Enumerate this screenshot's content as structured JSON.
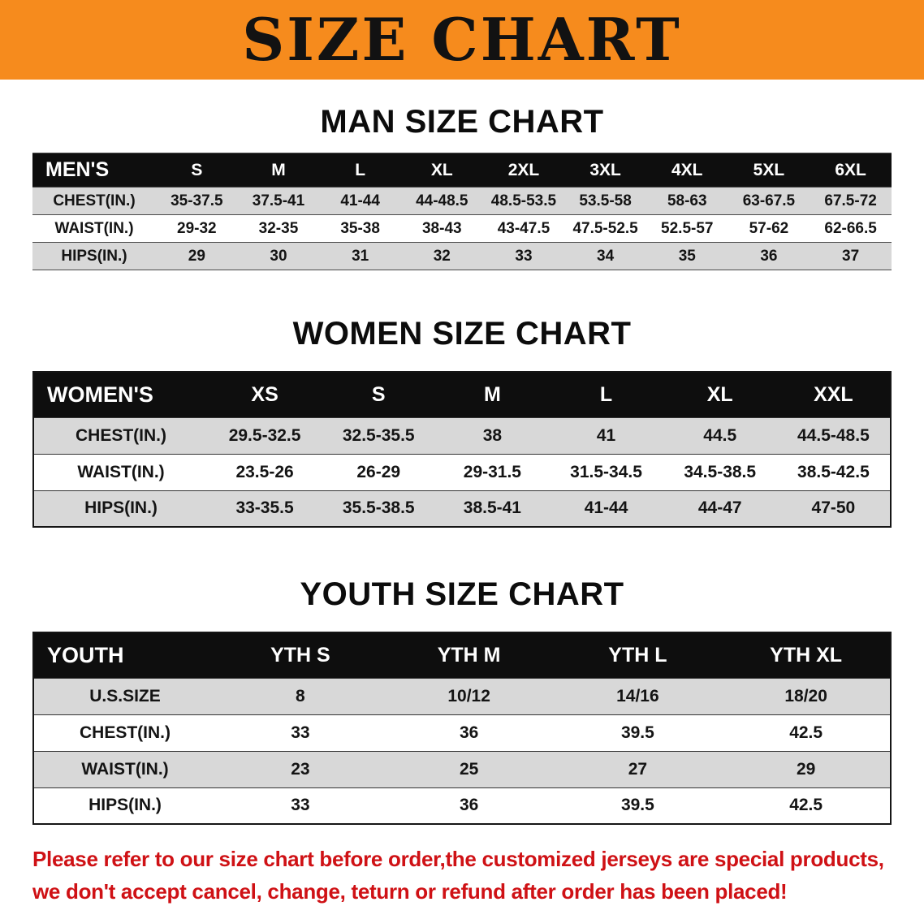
{
  "banner": {
    "title": "SIZE CHART"
  },
  "tables": [
    {
      "heading": "MAN SIZE CHART",
      "header": [
        "MEN'S",
        "S",
        "M",
        "L",
        "XL",
        "2XL",
        "3XL",
        "4XL",
        "5XL",
        "6XL"
      ],
      "rows": [
        [
          "CHEST(IN.)",
          "35-37.5",
          "37.5-41",
          "41-44",
          "44-48.5",
          "48.5-53.5",
          "53.5-58",
          "58-63",
          "63-67.5",
          "67.5-72"
        ],
        [
          "WAIST(IN.)",
          "29-32",
          "32-35",
          "35-38",
          "38-43",
          "43-47.5",
          "47.5-52.5",
          "52.5-57",
          "57-62",
          "62-66.5"
        ],
        [
          "HIPS(IN.)",
          "29",
          "30",
          "31",
          "32",
          "33",
          "34",
          "35",
          "36",
          "37"
        ]
      ]
    },
    {
      "heading": "WOMEN SIZE CHART",
      "header": [
        "WOMEN'S",
        "XS",
        "S",
        "M",
        "L",
        "XL",
        "XXL"
      ],
      "rows": [
        [
          "CHEST(IN.)",
          "29.5-32.5",
          "32.5-35.5",
          "38",
          "41",
          "44.5",
          "44.5-48.5"
        ],
        [
          "WAIST(IN.)",
          "23.5-26",
          "26-29",
          "29-31.5",
          "31.5-34.5",
          "34.5-38.5",
          "38.5-42.5"
        ],
        [
          "HIPS(IN.)",
          "33-35.5",
          "35.5-38.5",
          "38.5-41",
          "41-44",
          "44-47",
          "47-50"
        ]
      ]
    },
    {
      "heading": "YOUTH SIZE CHART",
      "header": [
        "YOUTH",
        "YTH S",
        "YTH M",
        "YTH L",
        "YTH XL"
      ],
      "rows": [
        [
          "U.S.SIZE",
          "8",
          "10/12",
          "14/16",
          "18/20"
        ],
        [
          "CHEST(IN.)",
          "33",
          "36",
          "39.5",
          "42.5"
        ],
        [
          "WAIST(IN.)",
          "23",
          "25",
          "27",
          "29"
        ],
        [
          "HIPS(IN.)",
          "33",
          "36",
          "39.5",
          "42.5"
        ]
      ]
    }
  ],
  "footer": {
    "line1": "Please refer to our size chart before order,the customized jerseys are special products,",
    "line2": "we don't accept cancel, change, teturn or refund after order has been placed!"
  },
  "colors": {
    "banner_bg": "#f68b1d",
    "header_bg": "#0e0e0e",
    "row_stripe": "#d8d8d8",
    "footer_red": "#cf1115"
  }
}
